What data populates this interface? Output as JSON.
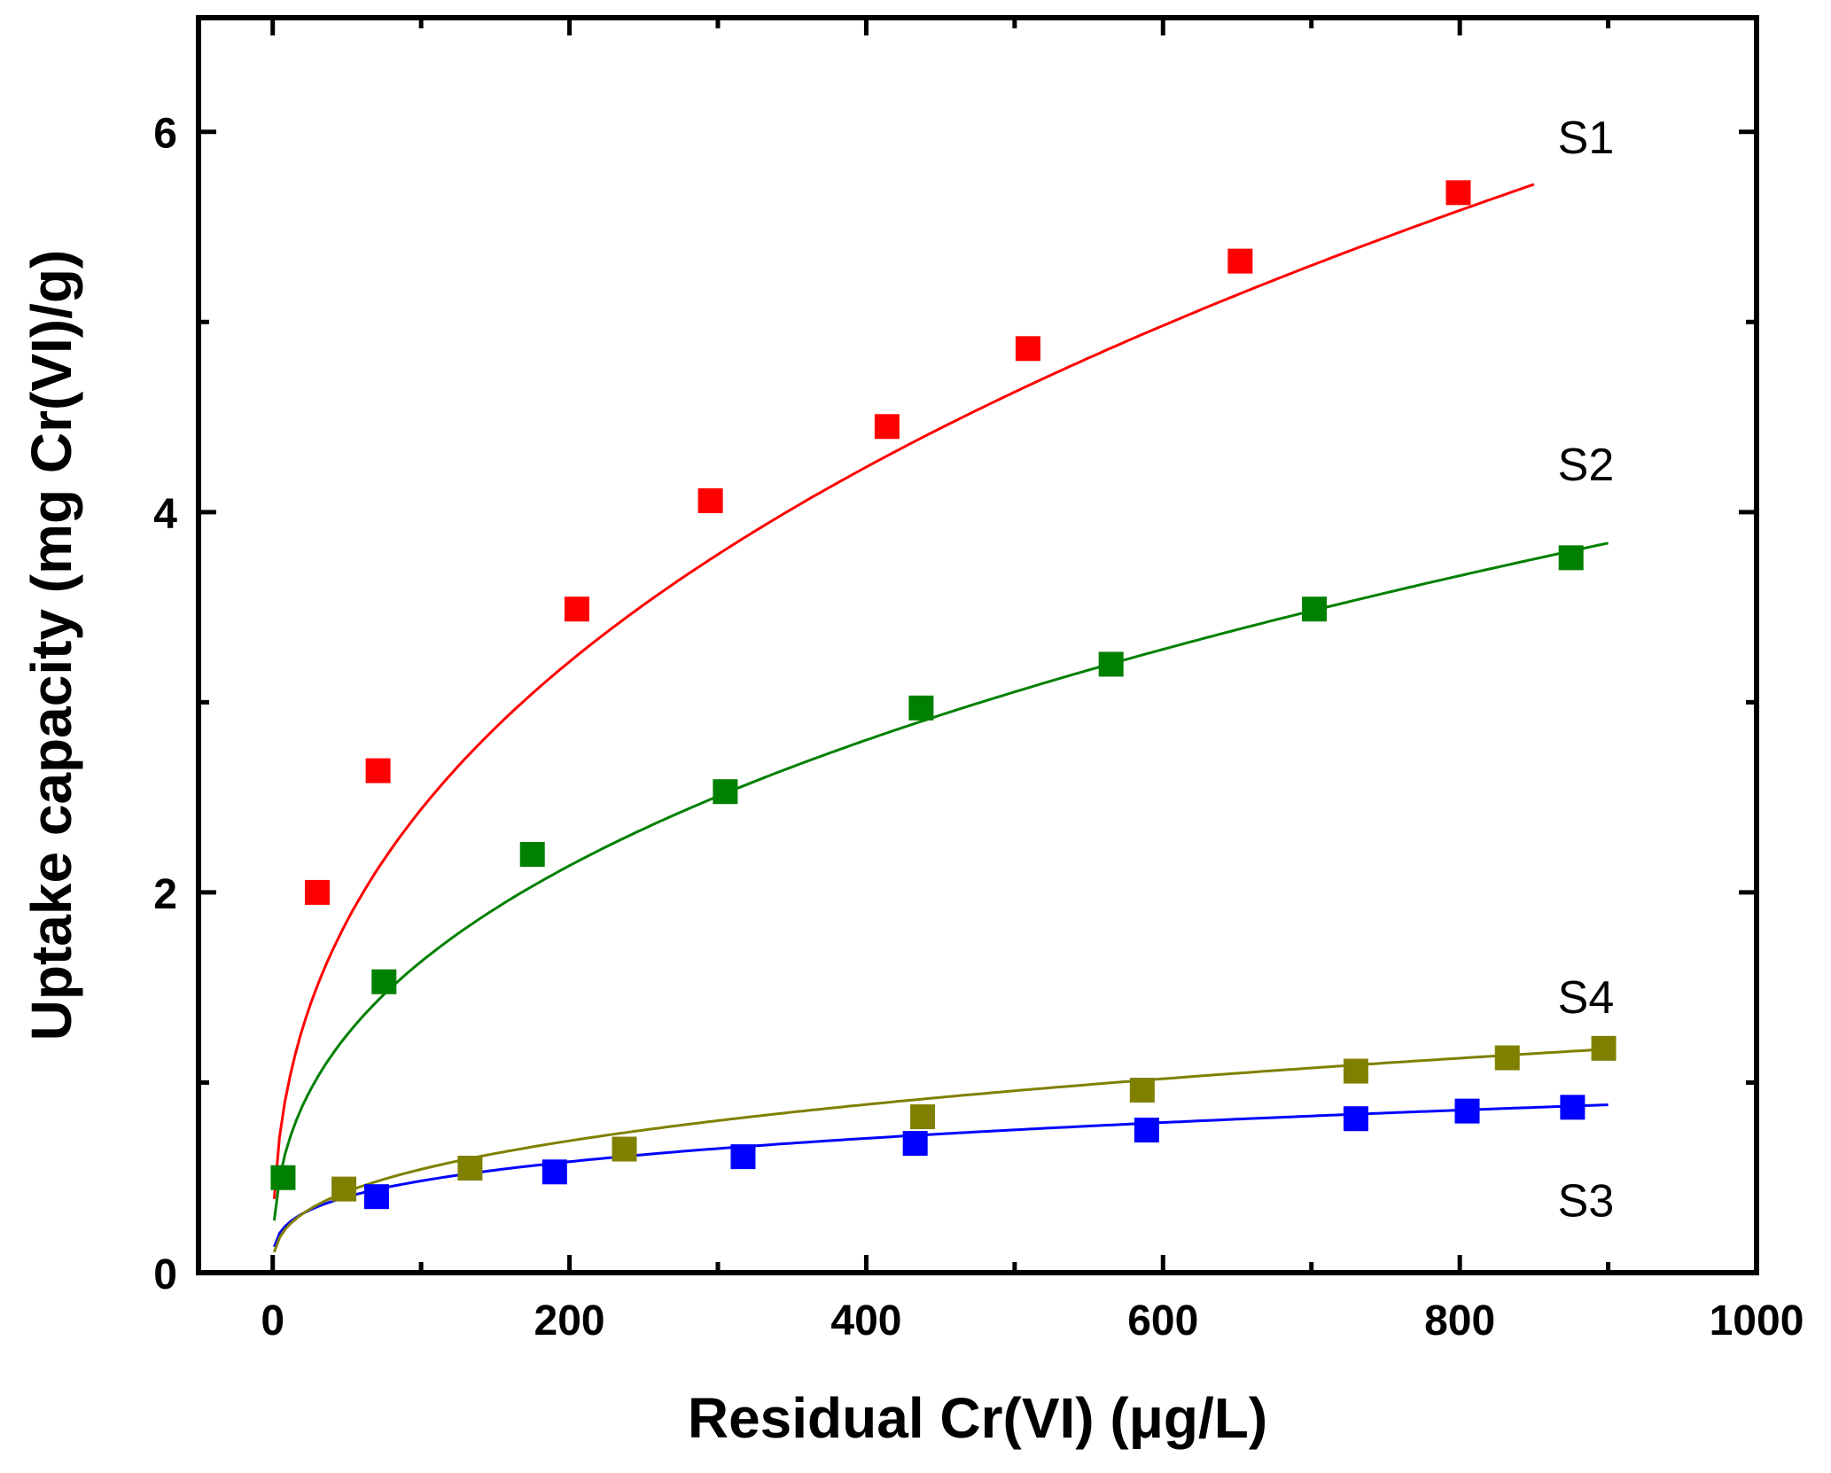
{
  "chart_data": {
    "type": "scatter",
    "title": "",
    "xlabel": "Residual Cr(VI) (μg/L)",
    "ylabel": "Uptake capacity (mg Cr(VI)/g)",
    "xlim": [
      -50,
      1000
    ],
    "ylim": [
      0,
      6.6
    ],
    "x_ticks": [
      0,
      200,
      400,
      600,
      800,
      1000
    ],
    "x_tick_labels": [
      "0",
      "200",
      "400",
      "600",
      "800",
      "1000"
    ],
    "y_ticks": [
      0,
      2,
      4,
      6
    ],
    "y_tick_labels": [
      "0",
      "2",
      "4",
      "6"
    ],
    "grid": false,
    "legend": "none",
    "series": [
      {
        "name": "S1",
        "color": "#ff0000",
        "x": [
          30,
          71,
          205,
          295,
          414,
          509,
          652,
          799
        ],
        "y": [
          2.0,
          2.64,
          3.49,
          4.06,
          4.45,
          4.86,
          5.32,
          5.68
        ],
        "fit": {
          "model": "power",
          "K": 0.388,
          "n": 0.399,
          "x_range": [
            1,
            850
          ]
        }
      },
      {
        "name": "S2",
        "color": "#008000",
        "x": [
          7,
          75,
          175,
          305,
          437,
          565,
          702,
          875
        ],
        "y": [
          0.5,
          1.53,
          2.2,
          2.53,
          2.97,
          3.2,
          3.49,
          3.76
        ],
        "fit": {
          "model": "power",
          "K": 0.274,
          "n": 0.388,
          "x_range": [
            1,
            900
          ]
        }
      },
      {
        "name": "S3",
        "color": "#0000ff",
        "x": [
          70,
          190,
          317,
          433,
          589,
          730,
          805,
          876
        ],
        "y": [
          0.4,
          0.53,
          0.61,
          0.68,
          0.75,
          0.81,
          0.85,
          0.87
        ],
        "fit": {
          "model": "power",
          "K": 0.136,
          "n": 0.275,
          "x_range": [
            1,
            900
          ]
        }
      },
      {
        "name": "S4",
        "color": "#808000",
        "x": [
          48,
          133,
          237,
          438,
          586,
          730,
          832,
          897
        ],
        "y": [
          0.44,
          0.55,
          0.65,
          0.82,
          0.96,
          1.06,
          1.13,
          1.18
        ],
        "fit": {
          "model": "power",
          "K": 0.108,
          "n": 0.351,
          "x_range": [
            1,
            900
          ]
        }
      }
    ],
    "annotations": [
      {
        "text": "S1",
        "x": 885,
        "y": 5.97
      },
      {
        "text": "S2",
        "x": 885,
        "y": 4.25
      },
      {
        "text": "S4",
        "x": 885,
        "y": 1.45
      },
      {
        "text": "S3",
        "x": 885,
        "y": 0.38
      }
    ]
  }
}
